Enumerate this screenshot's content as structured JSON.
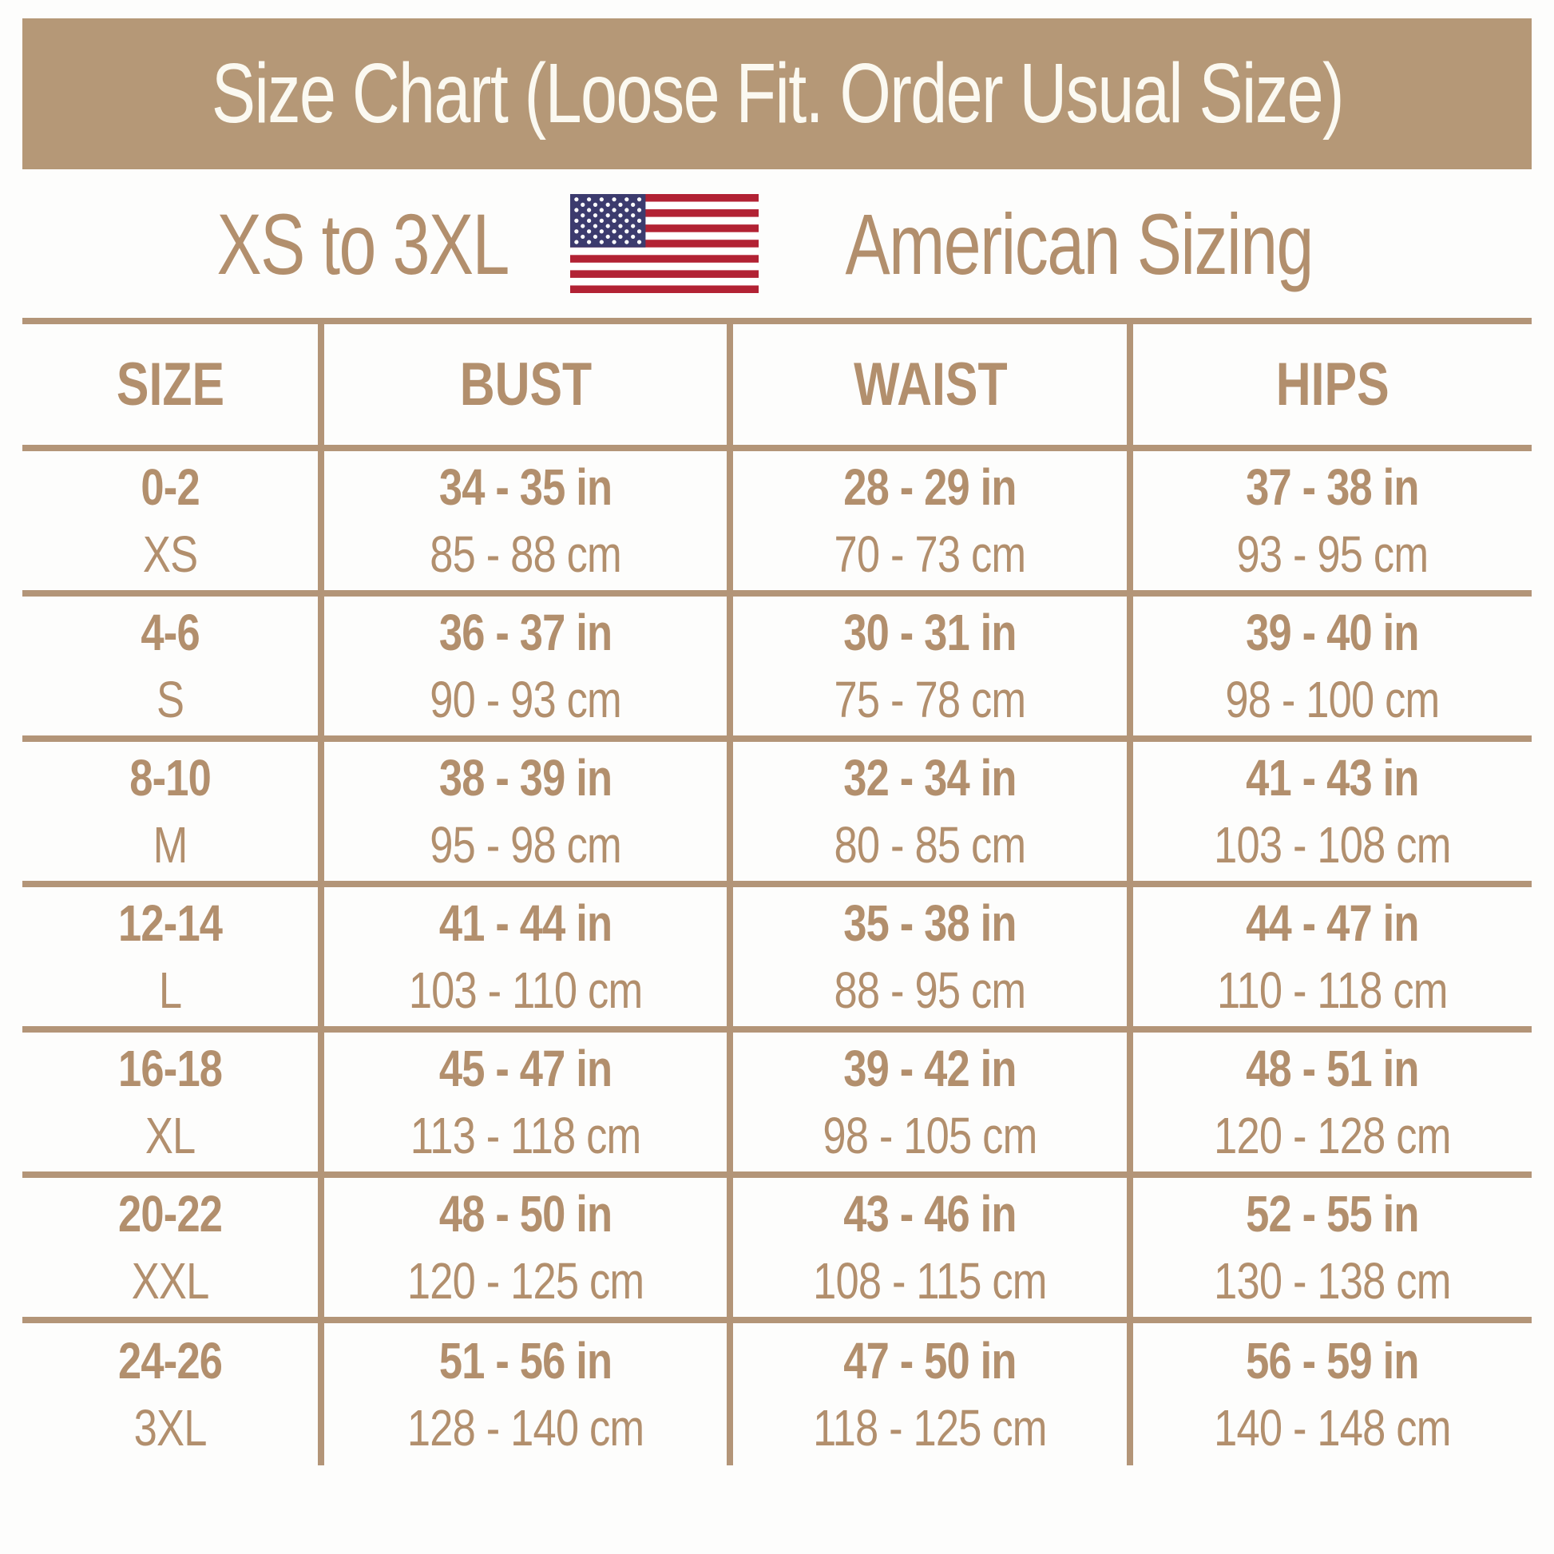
{
  "banner": {
    "title": "Size Chart (Loose Fit. Order Usual Size)"
  },
  "subtitle": {
    "range": "XS to 3XL",
    "label": "American Sizing",
    "flag_icon": "us-flag"
  },
  "colors": {
    "banner_bg": "#b59877",
    "banner_text": "#fbf9f1",
    "tan_text": "#b28f6d",
    "line": "#b39578",
    "flag_red": "#b22234",
    "flag_blue": "#3c3b6e",
    "flag_white": "#ffffff",
    "page_bg": "#fdfdfc"
  },
  "table": {
    "headers": [
      "SIZE",
      "BUST",
      "WAIST",
      "HIPS"
    ],
    "rows": [
      {
        "size": "0-2",
        "label": "XS",
        "bust_in": "34 - 35 in",
        "bust_cm": "85 - 88 cm",
        "waist_in": "28 - 29 in",
        "waist_cm": "70 - 73 cm",
        "hips_in": "37 - 38 in",
        "hips_cm": "93 - 95 cm"
      },
      {
        "size": "4-6",
        "label": "S",
        "bust_in": "36 - 37 in",
        "bust_cm": "90 - 93 cm",
        "waist_in": "30 - 31 in",
        "waist_cm": "75 - 78 cm",
        "hips_in": "39 - 40 in",
        "hips_cm": "98 - 100 cm"
      },
      {
        "size": "8-10",
        "label": "M",
        "bust_in": "38 - 39 in",
        "bust_cm": "95 - 98 cm",
        "waist_in": "32 - 34 in",
        "waist_cm": "80 - 85 cm",
        "hips_in": "41 - 43 in",
        "hips_cm": "103 - 108 cm"
      },
      {
        "size": "12-14",
        "label": "L",
        "bust_in": "41 - 44 in",
        "bust_cm": "103 - 110 cm",
        "waist_in": "35 - 38 in",
        "waist_cm": "88 - 95 cm",
        "hips_in": "44 - 47 in",
        "hips_cm": "110 - 118 cm"
      },
      {
        "size": "16-18",
        "label": "XL",
        "bust_in": "45 - 47 in",
        "bust_cm": "113 - 118 cm",
        "waist_in": "39 - 42 in",
        "waist_cm": "98 - 105 cm",
        "hips_in": "48 - 51 in",
        "hips_cm": "120 - 128 cm"
      },
      {
        "size": "20-22",
        "label": "XXL",
        "bust_in": "48 - 50 in",
        "bust_cm": "120 - 125 cm",
        "waist_in": "43 - 46 in",
        "waist_cm": "108 - 115 cm",
        "hips_in": "52 - 55 in",
        "hips_cm": "130 - 138 cm"
      },
      {
        "size": "24-26",
        "label": "3XL",
        "bust_in": "51 - 56 in",
        "bust_cm": "128 - 140 cm",
        "waist_in": "47 - 50 in",
        "waist_cm": "118 - 125 cm",
        "hips_in": "56 - 59 in",
        "hips_cm": "140 - 148 cm"
      }
    ]
  }
}
